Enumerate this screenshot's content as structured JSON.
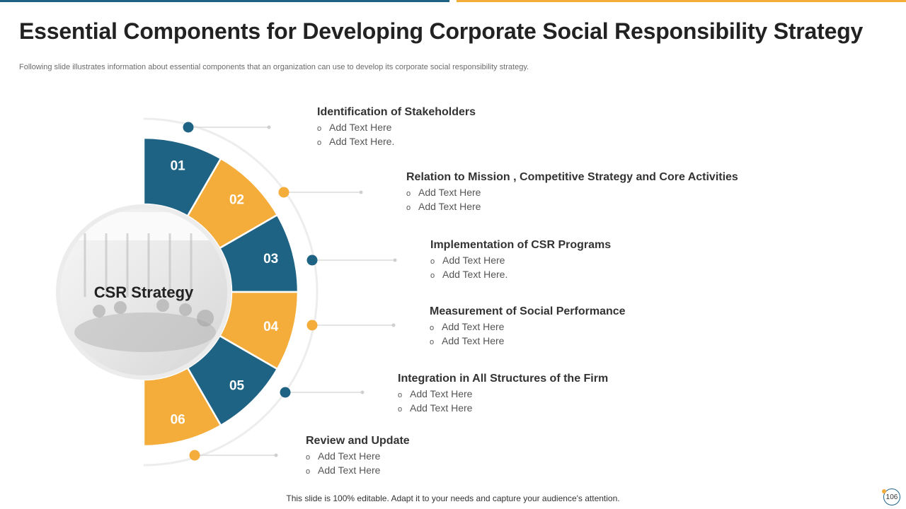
{
  "slide": {
    "title": "Essential Components for Developing Corporate Social Responsibility Strategy",
    "subtitle": "Following slide illustrates information about essential components that an organization can use to develop its corporate social responsibility strategy.",
    "footer": "This slide is 100% editable. Adapt it to your needs and capture your audience's attention.",
    "page_number": "106"
  },
  "center": {
    "label": "CSR Strategy",
    "image_icon": "meeting-room-photo"
  },
  "colors": {
    "blue": "#1e6384",
    "orange": "#f4ac3a",
    "line": "#d4d4d4",
    "ring": "#ededed"
  },
  "bullet_marker": "o",
  "segments": [
    {
      "number": "01",
      "color": "blue",
      "heading": "Identification of Stakeholders",
      "bullets": [
        "Add Text Here",
        "Add Text Here."
      ]
    },
    {
      "number": "02",
      "color": "orange",
      "heading": "Relation to Mission , Competitive Strategy and Core Activities",
      "bullets": [
        "Add Text Here",
        "Add Text Here"
      ]
    },
    {
      "number": "03",
      "color": "blue",
      "heading": "Implementation of CSR Programs",
      "bullets": [
        "Add Text Here",
        "Add Text Here."
      ]
    },
    {
      "number": "04",
      "color": "orange",
      "heading": "Measurement of Social Performance",
      "bullets": [
        "Add Text Here",
        "Add Text Here"
      ]
    },
    {
      "number": "05",
      "color": "blue",
      "heading": "Integration in All Structures of the Firm",
      "bullets": [
        "Add Text Here",
        "Add Text Here"
      ]
    },
    {
      "number": "06",
      "color": "orange",
      "heading": "Review and Update",
      "bullets": [
        "Add Text Here",
        "Add Text Here"
      ]
    }
  ]
}
